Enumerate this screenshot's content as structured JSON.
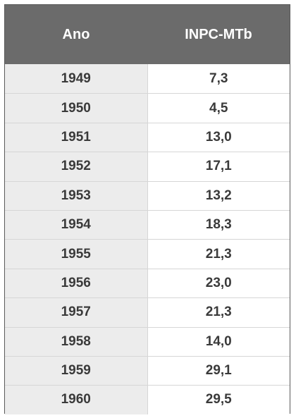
{
  "chart_data": {
    "type": "table",
    "columns": [
      "Ano",
      "INPC-MTb"
    ],
    "rows": [
      [
        "1949",
        "7,3"
      ],
      [
        "1950",
        "4,5"
      ],
      [
        "1951",
        "13,0"
      ],
      [
        "1952",
        "17,1"
      ],
      [
        "1953",
        "13,2"
      ],
      [
        "1954",
        "18,3"
      ],
      [
        "1955",
        "21,3"
      ],
      [
        "1956",
        "23,0"
      ],
      [
        "1957",
        "21,3"
      ],
      [
        "1958",
        "14,0"
      ],
      [
        "1959",
        "29,1"
      ],
      [
        "1960",
        "29,5"
      ]
    ]
  },
  "colors": {
    "header_bg": "#6b6b6b",
    "header_text": "#ffffff",
    "year_column_bg": "#ececec",
    "value_column_bg": "#ffffff",
    "cell_text": "#3a3a3a",
    "grid_line": "#d6d6d6",
    "border": "#5a5a5a"
  }
}
